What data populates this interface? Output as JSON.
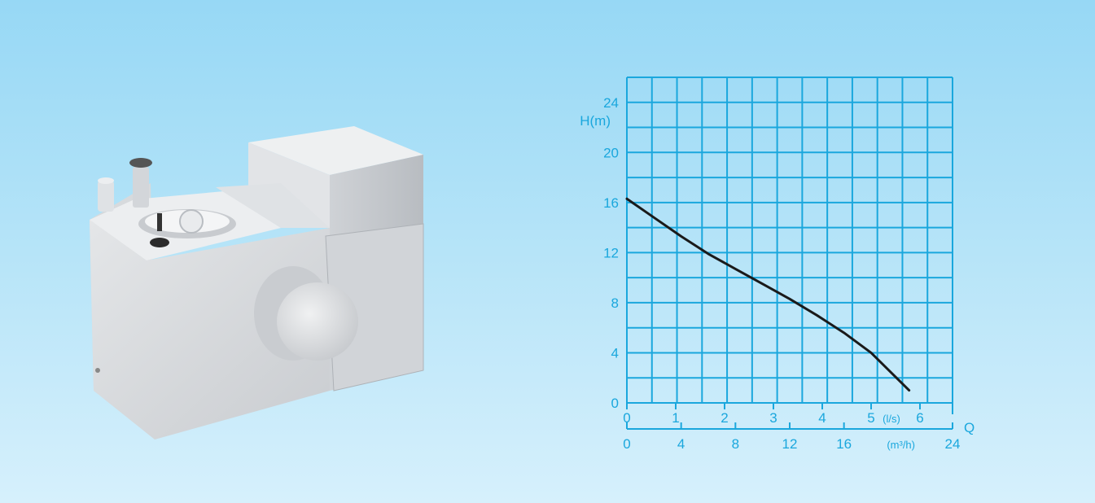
{
  "product": {
    "icon": "pump-unit-illustration"
  },
  "chart_data": {
    "type": "line",
    "title": "",
    "ylabel": "H(m)",
    "xlabel": "Q",
    "ylim": [
      0,
      26
    ],
    "yticks": [
      0,
      4,
      8,
      12,
      16,
      20,
      24
    ],
    "x_unit_ls": "(l/s)",
    "x_ticks_ls": [
      "0",
      "1",
      "2",
      "3",
      "4",
      "5",
      "6"
    ],
    "x_unit_m3h": "(m³/h)",
    "x_ticks_m3h": [
      "0",
      "4",
      "8",
      "12",
      "16",
      "24"
    ],
    "xlim_m3h": [
      0,
      24
    ],
    "grid": true,
    "series": [
      {
        "color": "#1a1a1a",
        "x_m3h": [
          0,
          2,
          4,
          6,
          8,
          10,
          12,
          14,
          16,
          18,
          20.8
        ],
        "y": [
          16.3,
          14.8,
          13.3,
          11.9,
          10.7,
          9.5,
          8.3,
          7.0,
          5.6,
          4.0,
          1.0
        ]
      }
    ],
    "colors": {
      "grid": "#1aa7dd",
      "text": "#1aa7dd",
      "curve": "#1a1a1a"
    }
  }
}
